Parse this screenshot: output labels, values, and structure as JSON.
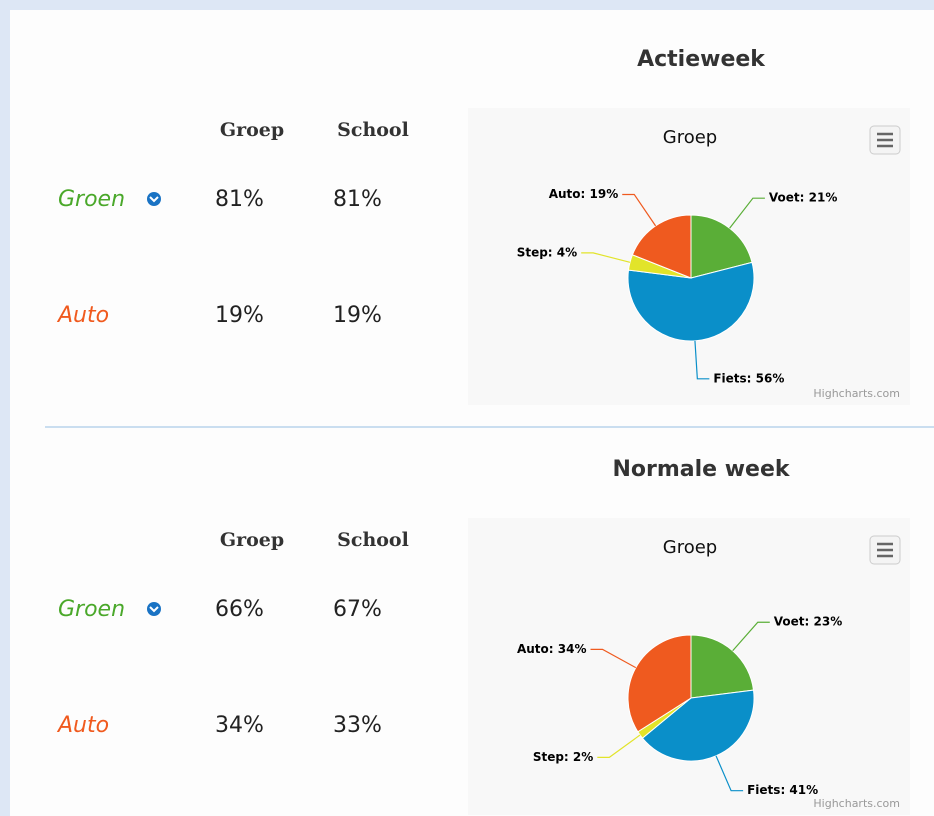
{
  "sections": [
    {
      "title": "Actieweek",
      "table": {
        "headers": [
          "Groep",
          "School"
        ],
        "rows": [
          [
            "Groen",
            "81%",
            "81%"
          ],
          [
            "Auto",
            "19%",
            "19%"
          ]
        ],
        "row_colors": [
          "#4aa82a",
          "#f05a1e"
        ]
      },
      "chart": {
        "type": "pie",
        "title": "Groep",
        "categories": [
          "Voet",
          "Fiets",
          "Step",
          "Auto"
        ],
        "values": [
          21,
          56,
          4,
          19
        ],
        "value_labels": [
          "Voet: 21%",
          "Fiets: 56%",
          "Step: 4%",
          "Auto: 19%"
        ],
        "colors": [
          "#5aae37",
          "#0a8fc9",
          "#e2e42a",
          "#ef5a1f"
        ],
        "credit": "Highcharts.com"
      }
    },
    {
      "title": "Normale week",
      "table": {
        "headers": [
          "Groep",
          "School"
        ],
        "rows": [
          [
            "Groen",
            "66%",
            "67%"
          ],
          [
            "Auto",
            "34%",
            "33%"
          ]
        ],
        "row_colors": [
          "#4aa82a",
          "#f05a1e"
        ]
      },
      "chart": {
        "type": "pie",
        "title": "Groep",
        "categories": [
          "Voet",
          "Fiets",
          "Step",
          "Auto"
        ],
        "values": [
          23,
          41,
          2,
          34
        ],
        "value_labels": [
          "Voet: 23%",
          "Fiets: 41%",
          "Step: 2%",
          "Auto: 34%"
        ],
        "colors": [
          "#5aae37",
          "#0a8fc9",
          "#e2e42a",
          "#ef5a1f"
        ],
        "credit": "Highcharts.com"
      }
    }
  ]
}
